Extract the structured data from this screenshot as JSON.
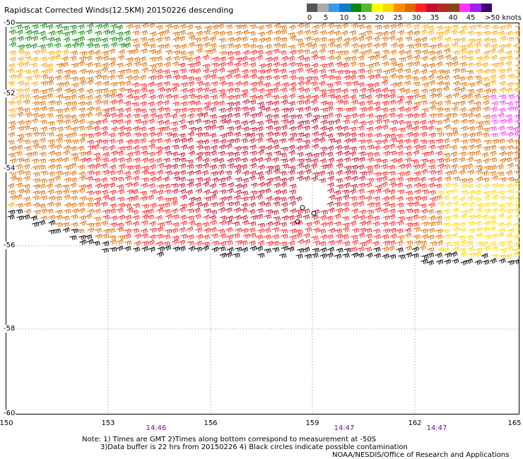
{
  "title": "Rapidscat Corrected Winds(12.5KM) 20150226 descending",
  "colorbar": {
    "colors": [
      "#555555",
      "#aaaaaa",
      "#2e9df2",
      "#1478d2",
      "#0a8a0a",
      "#55b82f",
      "#ffff00",
      "#ffd700",
      "#ff8c00",
      "#e06a00",
      "#ff2222",
      "#c8102e",
      "#b0301a",
      "#8b4513",
      "#ff33ff",
      "#a020f0",
      "#400070"
    ],
    "labels": [
      "0",
      "5",
      "10",
      "15",
      "20",
      "25",
      "30",
      "35",
      "40",
      "45",
      ">50 knots"
    ]
  },
  "lat_labels": [
    "-50",
    "-52",
    "-54",
    "-56",
    "-58",
    "-60"
  ],
  "lon_labels": [
    "150",
    "153",
    "156",
    "159",
    "162",
    "165"
  ],
  "times": [
    "14:46",
    "14:47",
    "14:47"
  ],
  "notes": {
    "line1": "Note: 1) Times are GMT 2)Times along bottom correspond to measurement at -50S",
    "line2": "3)Data buffer is 22 hrs from 20150226 4) Black circles indicate possible contamination",
    "line3": "NOAA/NESDIS/Office of Research and Applications"
  }
}
